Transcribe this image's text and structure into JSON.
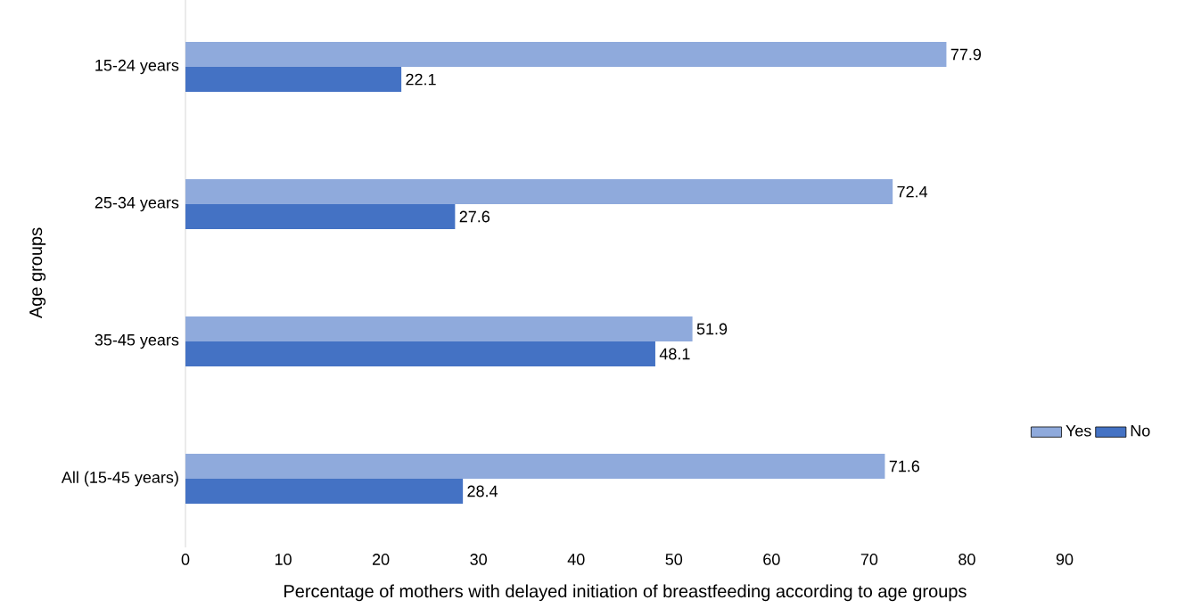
{
  "chart_data": {
    "type": "bar",
    "orientation": "horizontal",
    "xlabel": "Percentage of mothers with delayed initiation of breastfeeding according to age groups",
    "ylabel": "Age groups",
    "categories": [
      "15-24 years",
      "25-34 years",
      "35-45 years",
      "All (15-45 years)"
    ],
    "series": [
      {
        "name": "Yes",
        "color": "#8faadc",
        "values": [
          77.9,
          72.4,
          51.9,
          71.6
        ]
      },
      {
        "name": "No",
        "color": "#4472c4",
        "values": [
          22.1,
          27.6,
          48.1,
          28.4
        ]
      }
    ],
    "xlim": [
      0,
      90
    ],
    "xticks": [
      0,
      10,
      20,
      30,
      40,
      50,
      60,
      70,
      80,
      90
    ],
    "data_labels": true,
    "legend": "right",
    "grid": false
  }
}
